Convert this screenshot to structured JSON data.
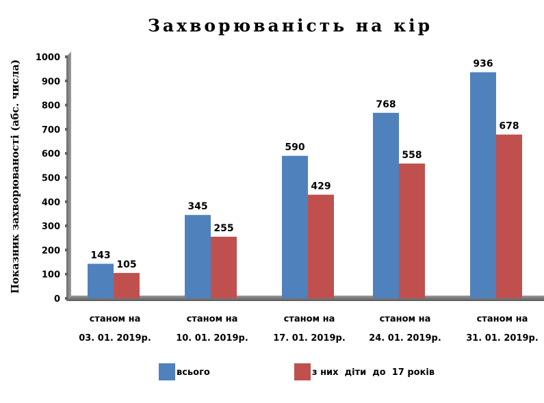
{
  "chart_data": {
    "type": "bar",
    "title": "Захворюваність на кір",
    "xlabel": "",
    "ylabel": "Показник захворюваності (абс. числа)",
    "ylim": [
      0,
      1000
    ],
    "yticks": [
      0,
      100,
      200,
      300,
      400,
      500,
      600,
      700,
      800,
      900,
      1000
    ],
    "grid": false,
    "legend_position": "bottom",
    "categories": [
      [
        "станом на",
        "03. 01. 2019р."
      ],
      [
        "станом на",
        "10. 01. 2019р."
      ],
      [
        "станом на",
        "17. 01. 2019р."
      ],
      [
        "станом на",
        "24. 01. 2019р."
      ],
      [
        "станом на",
        "31. 01. 2019р."
      ]
    ],
    "series": [
      {
        "name": "всього",
        "color": "#4f81bd",
        "values": [
          143,
          345,
          590,
          768,
          936
        ]
      },
      {
        "name": "з них  діти  до  17 років",
        "color": "#c0504d",
        "values": [
          105,
          255,
          429,
          558,
          678
        ]
      }
    ]
  }
}
